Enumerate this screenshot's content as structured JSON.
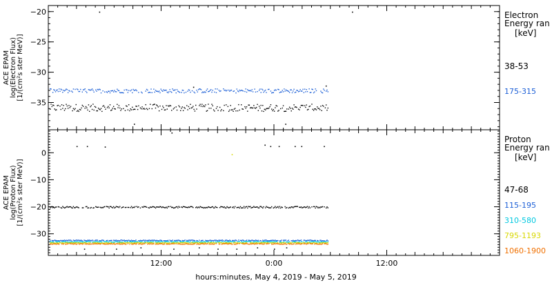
{
  "x_axis_label": "hours:minutes, May  4, 2019 - May  5, 2019",
  "colors": {
    "black": "#000000",
    "blue": "#1c5fd6",
    "cyan": "#00c8e0",
    "yellow": "#d8d800",
    "orange": "#f07000",
    "green": "#30b030"
  },
  "chart_data": [
    {
      "type": "scatter",
      "ylabel_lines": [
        "ACE EPAM",
        "log(Electron Flux)",
        "[1/(cm²s ster MeV)]"
      ],
      "legend_title": [
        "Electron",
        "Energy ran"
      ],
      "legend_unit": "[keV]",
      "ylim": [
        -39.5,
        -19
      ],
      "xlim_hours": [
        0,
        48
      ],
      "x_ticks": [
        {
          "h": 12,
          "label": "12:00"
        },
        {
          "h": 24,
          "label": "0:00"
        },
        {
          "h": 36,
          "label": "12:00"
        }
      ],
      "y_ticks": [
        -20,
        -25,
        -30,
        -35
      ],
      "data_end_hour": 29.7,
      "series": [
        {
          "name": "38-53",
          "color": "#000000",
          "base": -35.8,
          "spread": 0.6,
          "outliers": [
            [
              5.4,
              -20
            ],
            [
              32.3,
              -20
            ],
            [
              9.1,
              -38.5
            ],
            [
              25.2,
              -38.5
            ],
            [
              15.4,
              -32.4
            ],
            [
              29.5,
              -32.2
            ]
          ]
        },
        {
          "name": "175-315",
          "color": "#1c5fd6",
          "base": -33.0,
          "spread": 0.35,
          "outliers": []
        }
      ]
    },
    {
      "type": "scatter",
      "ylabel_lines": [
        "ACE EPAM",
        "log(Proton Flux)",
        "[1/(cm²s ster MeV)]"
      ],
      "legend_title": [
        "Proton",
        "Energy ran"
      ],
      "legend_unit": "[keV]",
      "ylim": [
        -38,
        8.5
      ],
      "xlim_hours": [
        0,
        48
      ],
      "x_ticks": [
        {
          "h": 12,
          "label": "12:00"
        },
        {
          "h": 24,
          "label": "0:00"
        },
        {
          "h": 36,
          "label": "12:00"
        }
      ],
      "y_ticks": [
        0,
        -10,
        -20,
        -30
      ],
      "data_end_hour": 29.7,
      "series": [
        {
          "name": "47-68",
          "color": "#000000",
          "base": -20.0,
          "spread": 0.3,
          "outliers": [
            [
              3.0,
              2.5
            ],
            [
              4.1,
              2.5
            ],
            [
              6.0,
              2.3
            ],
            [
              13.1,
              7.5
            ],
            [
              23.0,
              3.0
            ],
            [
              23.6,
              2.5
            ],
            [
              24.5,
              2.5
            ],
            [
              26.2,
              2.5
            ],
            [
              26.9,
              2.5
            ],
            [
              29.3,
              2.5
            ],
            [
              3.8,
              -35.5
            ],
            [
              7.2,
              -35.5
            ],
            [
              9.8,
              -35.0
            ],
            [
              13.3,
              -35.5
            ],
            [
              16.0,
              -35.0
            ],
            [
              18.0,
              -35.5
            ],
            [
              20.0,
              -35.5
            ],
            [
              22.2,
              -35.0
            ],
            [
              24.0,
              -35.5
            ],
            [
              25.3,
              -35.0
            ]
          ]
        },
        {
          "name": "115-195",
          "color": "#1c5fd6",
          "base": -32.3,
          "spread": 0.15,
          "outliers": []
        },
        {
          "name": "310-580",
          "color": "#00c8e0",
          "base": -32.8,
          "spread": 0.15,
          "outliers": []
        },
        {
          "name": "795-1193",
          "color": "#d8d800",
          "base": -33.2,
          "spread": 0.12,
          "outliers": [
            [
              19.5,
              -0.5
            ]
          ]
        },
        {
          "name": "1060-1900",
          "color": "#f07000",
          "base": -33.6,
          "spread": 0.12,
          "outliers": []
        }
      ]
    }
  ]
}
